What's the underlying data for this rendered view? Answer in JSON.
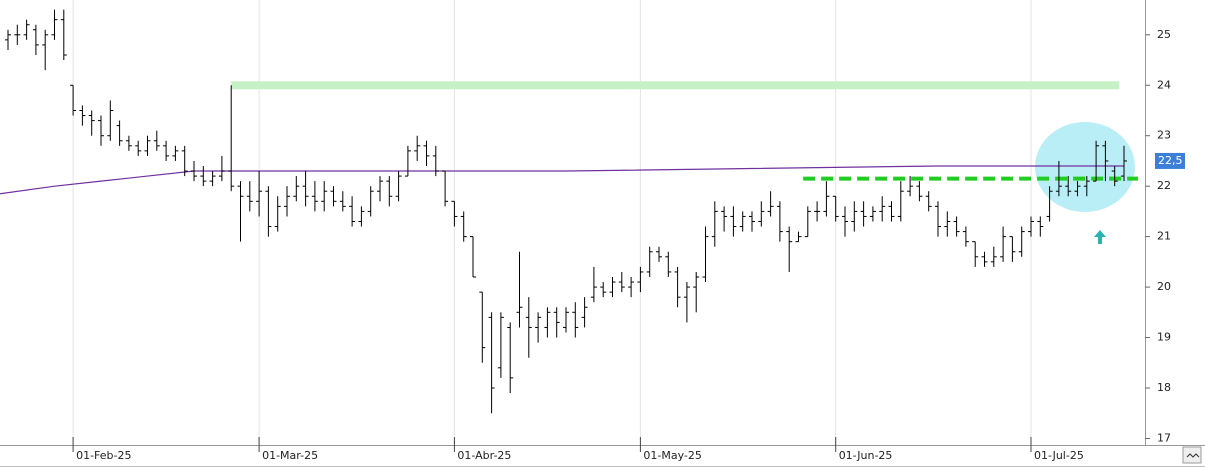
{
  "chart_data": {
    "type": "ohlc",
    "categories": [
      null,
      null,
      null,
      null,
      null,
      null,
      null,
      "01-Feb-25",
      null,
      null,
      null,
      null,
      null,
      null,
      null,
      null,
      null,
      null,
      null,
      null,
      null,
      null,
      null,
      null,
      null,
      null,
      null,
      "01-Mar-25",
      null,
      null,
      null,
      null,
      null,
      null,
      null,
      null,
      null,
      null,
      null,
      null,
      null,
      null,
      null,
      null,
      null,
      null,
      null,
      null,
      "01-Abr-25",
      null,
      null,
      null,
      null,
      null,
      null,
      null,
      null,
      null,
      null,
      null,
      null,
      null,
      null,
      null,
      null,
      null,
      null,
      null,
      "01-May-25",
      null,
      null,
      null,
      null,
      null,
      null,
      null,
      null,
      null,
      null,
      null,
      null,
      null,
      null,
      null,
      null,
      null,
      null,
      null,
      null,
      "01-Jun-25",
      null,
      null,
      null,
      null,
      null,
      null,
      null,
      null,
      null,
      null,
      null,
      null,
      null,
      null,
      null,
      null,
      null,
      null,
      null,
      null,
      "01-Jul-25",
      null,
      null,
      null,
      null,
      null,
      null,
      null,
      null,
      null,
      null
    ],
    "ohlc": [
      [
        24.9,
        25.1,
        24.7,
        25.0
      ],
      [
        25.0,
        25.2,
        24.8,
        25.0
      ],
      [
        25.0,
        25.3,
        24.9,
        25.2
      ],
      [
        25.1,
        25.2,
        24.6,
        24.8
      ],
      [
        24.8,
        25.1,
        24.3,
        25.0
      ],
      [
        25.0,
        25.5,
        24.9,
        25.3
      ],
      [
        25.3,
        25.5,
        24.5,
        24.6
      ],
      [
        24.0,
        24.0,
        23.4,
        23.5
      ],
      [
        23.5,
        23.6,
        23.2,
        23.4
      ],
      [
        23.4,
        23.5,
        23.0,
        23.3
      ],
      [
        23.3,
        23.4,
        22.8,
        23.0
      ],
      [
        23.0,
        23.7,
        22.9,
        23.5
      ],
      [
        23.2,
        23.3,
        22.8,
        22.9
      ],
      [
        22.9,
        23.0,
        22.7,
        22.8
      ],
      [
        22.8,
        22.9,
        22.6,
        22.7
      ],
      [
        22.7,
        23.0,
        22.6,
        22.9
      ],
      [
        22.9,
        23.1,
        22.7,
        22.8
      ],
      [
        22.8,
        22.9,
        22.5,
        22.6
      ],
      [
        22.6,
        22.8,
        22.5,
        22.7
      ],
      [
        22.7,
        22.8,
        22.2,
        22.3
      ],
      [
        22.3,
        22.5,
        22.1,
        22.2
      ],
      [
        22.2,
        22.4,
        22.0,
        22.1
      ],
      [
        22.1,
        22.3,
        22.0,
        22.2
      ],
      [
        22.2,
        22.6,
        22.1,
        22.3
      ],
      [
        22.3,
        24.0,
        21.9,
        22.0
      ],
      [
        22.0,
        22.1,
        20.9,
        21.8
      ],
      [
        21.8,
        22.1,
        21.5,
        21.7
      ],
      [
        21.7,
        22.3,
        21.4,
        21.9
      ],
      [
        21.9,
        22.0,
        21.0,
        21.2
      ],
      [
        21.2,
        21.8,
        21.1,
        21.6
      ],
      [
        21.6,
        22.0,
        21.4,
        21.8
      ],
      [
        21.8,
        22.2,
        21.7,
        22.0
      ],
      [
        22.0,
        22.3,
        21.6,
        21.8
      ],
      [
        21.8,
        22.1,
        21.5,
        21.7
      ],
      [
        21.7,
        22.1,
        21.5,
        21.9
      ],
      [
        21.9,
        22.0,
        21.6,
        21.7
      ],
      [
        21.7,
        21.9,
        21.5,
        21.6
      ],
      [
        21.6,
        21.8,
        21.2,
        21.3
      ],
      [
        21.3,
        21.6,
        21.2,
        21.5
      ],
      [
        21.5,
        22.0,
        21.4,
        21.9
      ],
      [
        21.9,
        22.2,
        21.7,
        22.1
      ],
      [
        22.1,
        22.2,
        21.6,
        21.8
      ],
      [
        21.8,
        22.3,
        21.7,
        22.2
      ],
      [
        22.2,
        22.8,
        22.2,
        22.7
      ],
      [
        22.7,
        23.0,
        22.5,
        22.8
      ],
      [
        22.8,
        22.9,
        22.4,
        22.6
      ],
      [
        22.6,
        22.8,
        22.2,
        22.3
      ],
      [
        22.3,
        22.3,
        21.6,
        21.7
      ],
      [
        21.7,
        21.7,
        21.2,
        21.4
      ],
      [
        21.4,
        21.5,
        20.9,
        21.0
      ],
      [
        21.0,
        21.0,
        20.2,
        20.2
      ],
      [
        19.9,
        19.9,
        18.5,
        18.8
      ],
      [
        19.4,
        19.5,
        17.5,
        18.0
      ],
      [
        18.4,
        19.5,
        18.2,
        19.4
      ],
      [
        19.2,
        19.3,
        17.9,
        18.2
      ],
      [
        19.5,
        20.7,
        19.2,
        19.6
      ],
      [
        19.4,
        19.8,
        18.6,
        19.2
      ],
      [
        19.2,
        19.5,
        18.9,
        19.4
      ],
      [
        19.2,
        19.6,
        19.0,
        19.5
      ],
      [
        19.5,
        19.6,
        19.0,
        19.3
      ],
      [
        19.2,
        19.6,
        19.1,
        19.5
      ],
      [
        19.5,
        19.7,
        19.0,
        19.2
      ],
      [
        19.4,
        19.8,
        19.2,
        19.6
      ],
      [
        19.8,
        20.4,
        19.7,
        20.0
      ],
      [
        20.0,
        20.1,
        19.8,
        19.9
      ],
      [
        19.9,
        20.2,
        19.8,
        20.1
      ],
      [
        20.1,
        20.3,
        19.9,
        20.0
      ],
      [
        20.0,
        20.2,
        19.8,
        20.1
      ],
      [
        20.1,
        20.4,
        19.9,
        20.3
      ],
      [
        20.3,
        20.8,
        20.2,
        20.7
      ],
      [
        20.7,
        20.8,
        20.5,
        20.6
      ],
      [
        20.6,
        20.7,
        20.2,
        20.3
      ],
      [
        20.3,
        20.4,
        19.6,
        19.8
      ],
      [
        19.8,
        20.1,
        19.3,
        20.0
      ],
      [
        20.0,
        20.3,
        19.5,
        20.2
      ],
      [
        20.2,
        21.2,
        20.1,
        21.0
      ],
      [
        21.0,
        21.7,
        20.8,
        21.5
      ],
      [
        21.5,
        21.6,
        21.1,
        21.4
      ],
      [
        21.4,
        21.6,
        21.0,
        21.2
      ],
      [
        21.2,
        21.5,
        21.1,
        21.4
      ],
      [
        21.4,
        21.5,
        21.1,
        21.3
      ],
      [
        21.3,
        21.7,
        21.2,
        21.5
      ],
      [
        21.5,
        21.9,
        21.4,
        21.6
      ],
      [
        21.6,
        21.7,
        20.9,
        21.1
      ],
      [
        21.1,
        21.2,
        20.3,
        20.9
      ],
      [
        20.9,
        21.1,
        20.9,
        21.0
      ],
      [
        21.0,
        21.6,
        21.0,
        21.5
      ],
      [
        21.5,
        21.7,
        21.3,
        21.5
      ],
      [
        21.5,
        22.1,
        21.4,
        21.8
      ],
      [
        21.8,
        21.8,
        21.3,
        21.4
      ],
      [
        21.4,
        21.6,
        21.0,
        21.3
      ],
      [
        21.3,
        21.7,
        21.1,
        21.5
      ],
      [
        21.5,
        21.7,
        21.2,
        21.4
      ],
      [
        21.4,
        21.6,
        21.3,
        21.5
      ],
      [
        21.5,
        21.8,
        21.3,
        21.6
      ],
      [
        21.6,
        21.7,
        21.3,
        21.4
      ],
      [
        21.4,
        22.1,
        21.3,
        21.9
      ],
      [
        21.9,
        22.2,
        21.8,
        22.0
      ],
      [
        22.0,
        22.1,
        21.7,
        21.8
      ],
      [
        21.8,
        21.9,
        21.5,
        21.6
      ],
      [
        21.6,
        21.7,
        21.0,
        21.2
      ],
      [
        21.2,
        21.5,
        21.0,
        21.3
      ],
      [
        21.3,
        21.4,
        21.0,
        21.1
      ],
      [
        21.1,
        21.2,
        20.8,
        20.9
      ],
      [
        20.9,
        20.9,
        20.4,
        20.6
      ],
      [
        20.6,
        20.7,
        20.4,
        20.5
      ],
      [
        20.5,
        20.8,
        20.4,
        20.6
      ],
      [
        20.6,
        21.2,
        20.5,
        21.0
      ],
      [
        21.0,
        21.0,
        20.5,
        20.7
      ],
      [
        20.7,
        21.2,
        20.6,
        21.1
      ],
      [
        21.1,
        21.4,
        21.0,
        21.3
      ],
      [
        21.3,
        21.4,
        21.0,
        21.2
      ],
      [
        21.4,
        22.0,
        21.3,
        21.9
      ],
      [
        21.9,
        22.5,
        21.8,
        22.0
      ],
      [
        22.0,
        22.2,
        21.8,
        21.9
      ],
      [
        21.9,
        22.1,
        21.8,
        22.0
      ],
      [
        22.0,
        22.2,
        21.8,
        22.1
      ],
      [
        22.1,
        22.9,
        22.1,
        22.8
      ],
      [
        22.8,
        22.9,
        22.1,
        22.5
      ],
      [
        22.3,
        22.4,
        22.0,
        22.1
      ],
      [
        22.2,
        22.8,
        22.1,
        22.5
      ]
    ],
    "bar_color": "#000000",
    "moving_average": {
      "color": "#7030a0",
      "x": [
        0,
        5,
        10,
        15,
        20,
        40,
        60,
        80,
        100,
        120
      ],
      "values": [
        21.85,
        22.0,
        22.1,
        22.2,
        22.3,
        22.3,
        22.3,
        22.35,
        22.4,
        22.4
      ]
    },
    "levels": [
      {
        "value": 24.0,
        "color": "#c6f0c6",
        "from": 24,
        "to": 119.5,
        "style": "solid"
      },
      {
        "value": 22.15,
        "color": "#22cc22",
        "from": 85.5,
        "to": 121.5,
        "style": "dashed"
      }
    ],
    "last_price": {
      "value": 22.5,
      "label": "22,5",
      "color": "#3c7fd8"
    },
    "ylim": [
      16.87,
      25.69
    ],
    "yticks": [
      17,
      18,
      19,
      20,
      21,
      22,
      23,
      24,
      25
    ],
    "grid": true
  }
}
